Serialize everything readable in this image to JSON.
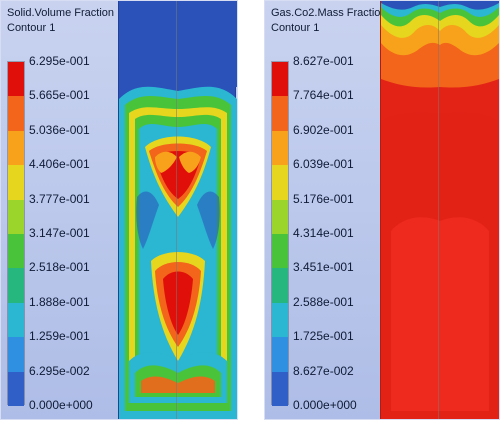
{
  "panels": {
    "left": {
      "title": "Solid.Volume Fraction",
      "subtitle": "Contour 1",
      "legend_values": [
        "6.295e-001",
        "5.665e-001",
        "5.036e-001",
        "4.406e-001",
        "3.777e-001",
        "3.147e-001",
        "2.518e-001",
        "1.888e-001",
        "1.259e-001",
        "6.295e-002",
        "0.000e+000"
      ]
    },
    "right": {
      "title": "Gas.Co2.Mass Fraction",
      "subtitle": "Contour 1",
      "legend_values": [
        "8.627e-001",
        "7.764e-001",
        "6.902e-001",
        "6.039e-001",
        "5.176e-001",
        "4.314e-001",
        "3.451e-001",
        "2.588e-001",
        "1.725e-001",
        "8.627e-002",
        "0.000e+000"
      ]
    }
  },
  "colors": {
    "legend_scale": [
      "#e00f0a",
      "#f2651a",
      "#f7a21a",
      "#e6d61e",
      "#9bd42b",
      "#49c43a",
      "#25b77d",
      "#2bb6d1",
      "#2f8fe0",
      "#2f5fc7"
    ],
    "panel_bg": "#aebde7"
  }
}
